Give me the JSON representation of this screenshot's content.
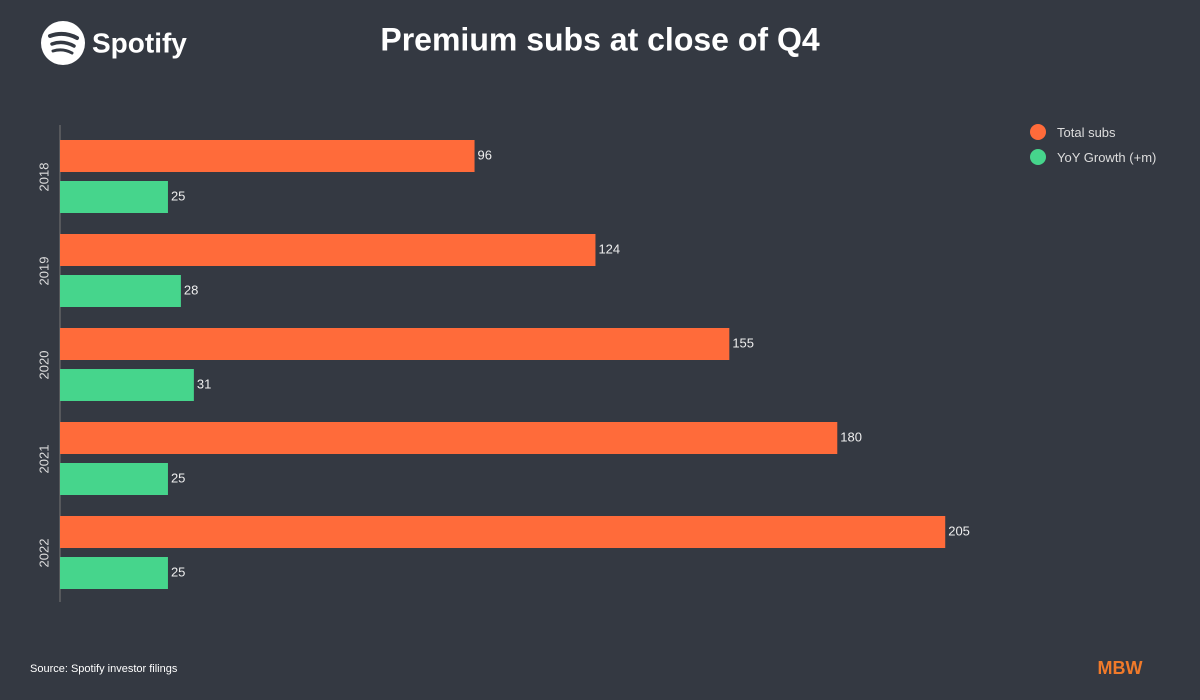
{
  "chart_data": {
    "type": "hbar",
    "title": "Premium subs at close of Q4",
    "brand": "Spotify",
    "source": "Source: Spotify investor filings",
    "publisher": "MBW",
    "categories": [
      "2018",
      "2019",
      "2020",
      "2021",
      "2022"
    ],
    "series": [
      {
        "name": "Total subs",
        "color": "#ff6b3a",
        "values": [
          96,
          124,
          155,
          180,
          205
        ]
      },
      {
        "name": "YoY Growth (+m)",
        "color": "#46d58c",
        "values": [
          25,
          28,
          31,
          25,
          25
        ]
      }
    ],
    "xlim": [
      0,
      220
    ],
    "legend": "top-right"
  }
}
